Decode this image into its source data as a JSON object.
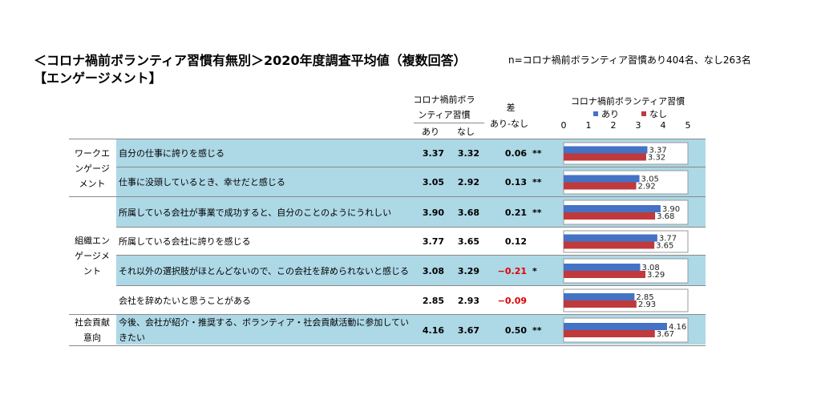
{
  "title": "＜コロナ禍前ボランティア習慣有無別＞2020年度調査平均値（複数回答）",
  "note": "n=コロナ禍前ボランティア習慣あり404名、なし263名",
  "subtitle": "【エンゲージメント】",
  "headers": {
    "habit_line1": "コロナ禍前ボラ",
    "habit_line2": "ンティア習慣",
    "ari": "あり",
    "nashi": "なし",
    "diff_line1": "差",
    "diff_line2": "あり-なし"
  },
  "categories": [
    {
      "label": "ワークエンゲージメント",
      "lines": [
        "ワークエ",
        "ンゲージ",
        "メント"
      ]
    },
    {
      "label": "組織エンゲージメント",
      "lines": [
        "組織エン",
        "ゲージメ",
        "ント"
      ]
    },
    {
      "label": "社会貢献意向",
      "lines": [
        "社会貢献",
        "意向"
      ]
    }
  ],
  "rows": [
    {
      "item": "自分の仕事に誇りを感じる",
      "ari": "3.37",
      "nashi": "3.32",
      "diff": "0.06",
      "sig": "**"
    },
    {
      "item": "仕事に没頭しているとき、幸せだと感じる",
      "ari": "3.05",
      "nashi": "2.92",
      "diff": "0.13",
      "sig": "**"
    },
    {
      "item": "所属している会社が事業で成功すると、自分のことのようにうれしい",
      "ari": "3.90",
      "nashi": "3.68",
      "diff": "0.21",
      "sig": "**"
    },
    {
      "item": "所属している会社に誇りを感じる",
      "ari": "3.77",
      "nashi": "3.65",
      "diff": "0.12",
      "sig": ""
    },
    {
      "item": "それ以外の選択肢がほとんどないので、この会社を辞められないと感じる",
      "ari": "3.08",
      "nashi": "3.29",
      "diff": "−0.21",
      "sig": "*"
    },
    {
      "item": "会社を辞めたいと思うことがある",
      "ari": "2.85",
      "nashi": "2.93",
      "diff": "−0.09",
      "sig": ""
    },
    {
      "item": "今後、会社が紹介・推奨する、ボランティア・社会貢献活動に参加していきたい",
      "ari": "4.16",
      "nashi": "3.67",
      "diff": "0.50",
      "sig": "**"
    }
  ],
  "chart_data": {
    "type": "bar",
    "orientation": "horizontal",
    "title": "コロナ禍前ボランティア習慣",
    "categories": [
      "自分の仕事に誇りを感じる",
      "仕事に没頭しているとき、幸せだと感じる",
      "所属している会社が事業で成功すると、自分のことのようにうれしい",
      "所属している会社に誇りを感じる",
      "それ以外の選択肢がほとんどないので、この会社を辞められないと感じる",
      "会社を辞めたいと思うことがある",
      "今後、会社が紹介・推奨する、ボランティア・社会貢献活動に参加していきたい"
    ],
    "series": [
      {
        "name": "あり",
        "values": [
          3.37,
          3.05,
          3.9,
          3.77,
          3.08,
          2.85,
          4.16
        ],
        "labels": [
          "3.37",
          "3.05",
          "3.90",
          "3.77",
          "3.08",
          "2.85",
          "4.16"
        ],
        "color": "#4472c4"
      },
      {
        "name": "なし",
        "values": [
          3.32,
          2.92,
          3.68,
          3.65,
          3.29,
          2.93,
          3.67
        ],
        "labels": [
          "3.32",
          "2.92",
          "3.68",
          "3.65",
          "3.29",
          "2.93",
          "3.67"
        ],
        "color": "#c0393b"
      }
    ],
    "xlim": [
      0,
      5
    ],
    "xticks": [
      "0",
      "1",
      "2",
      "3",
      "4",
      "5"
    ],
    "legend": "top",
    "grid": false
  }
}
